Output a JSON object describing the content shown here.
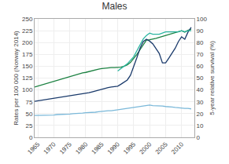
{
  "chart_data": {
    "type": "line",
    "title": "Males",
    "ylabel": "Rates per 100 000 (Norway 2014)",
    "y2label": "5-year relative survival (%)",
    "x": [
      1964,
      1965,
      1966,
      1967,
      1968,
      1969,
      1970,
      1971,
      1972,
      1973,
      1974,
      1975,
      1976,
      1977,
      1978,
      1979,
      1980,
      1981,
      1982,
      1983,
      1984,
      1985,
      1986,
      1987,
      1988,
      1989,
      1990,
      1991,
      1992,
      1993,
      1994,
      1995,
      1996,
      1997,
      1998,
      1999,
      2000,
      2001,
      2002,
      2003,
      2004,
      2005,
      2006,
      2007,
      2008,
      2009,
      2010,
      2011,
      2012,
      2013
    ],
    "series": [
      {
        "color": "#1a8040",
        "values": [
          106,
          108,
          110,
          112,
          114,
          116,
          118,
          121,
          123,
          125,
          127,
          129,
          131,
          133,
          135,
          136,
          137,
          139,
          141,
          143,
          144,
          145,
          146,
          147,
          147,
          147,
          147,
          148,
          150,
          153,
          158,
          166,
          175,
          185,
          196,
          205,
          206,
          207,
          209,
          211,
          213,
          215,
          218,
          220,
          222,
          223,
          225,
          222,
          226,
          228
        ]
      },
      {
        "color": "#1a3a6b",
        "values": [
          76,
          77,
          78,
          79,
          80,
          81,
          82,
          83,
          84,
          85,
          86,
          87,
          88,
          89,
          90,
          91,
          92,
          94,
          96,
          98,
          100,
          102,
          104,
          105,
          106,
          107,
          108,
          112,
          116,
          121,
          131,
          148,
          168,
          188,
          202,
          207,
          203,
          197,
          186,
          177,
          157,
          157,
          167,
          178,
          188,
          202,
          212,
          207,
          222,
          232
        ]
      },
      {
        "color": "#7ab8d9",
        "values": [
          46,
          46,
          46,
          47,
          47,
          47,
          47,
          48,
          48,
          48,
          49,
          49,
          50,
          50,
          51,
          51,
          52,
          52,
          53,
          53,
          54,
          55,
          55,
          56,
          56,
          57,
          57,
          58,
          59,
          60,
          62,
          63,
          64,
          65,
          66,
          67,
          68,
          67,
          67,
          66,
          66,
          65,
          65,
          64,
          63,
          62,
          62,
          61,
          61,
          60
        ]
      },
      {
        "color": "#2ab5a0",
        "axis": "y2",
        "x": [
          1990,
          1991,
          1992,
          1993,
          1994,
          1995,
          1996,
          1997,
          1998,
          1999,
          2000,
          2001,
          2002,
          2003,
          2004,
          2005,
          2006,
          2007,
          2008,
          2009,
          2010,
          2011,
          2012,
          2013
        ],
        "values": [
          56,
          58,
          60,
          62,
          65,
          68,
          73,
          78,
          83,
          86,
          88,
          87,
          87,
          87,
          88,
          89,
          89,
          89,
          89,
          89,
          90,
          89,
          90,
          90
        ]
      }
    ],
    "xlim": [
      1964,
      2014
    ],
    "xticks": [
      1965,
      1970,
      1975,
      1980,
      1985,
      1990,
      1995,
      2000,
      2005,
      2010
    ],
    "ylim": [
      0,
      250
    ],
    "yticks": [
      0,
      25,
      50,
      75,
      100,
      125,
      150,
      175,
      200,
      225,
      250
    ],
    "y2lim": [
      0,
      100
    ],
    "y2ticks": [
      0,
      10,
      20,
      30,
      40,
      50,
      60,
      70,
      80,
      90,
      100
    ],
    "grid": true
  }
}
